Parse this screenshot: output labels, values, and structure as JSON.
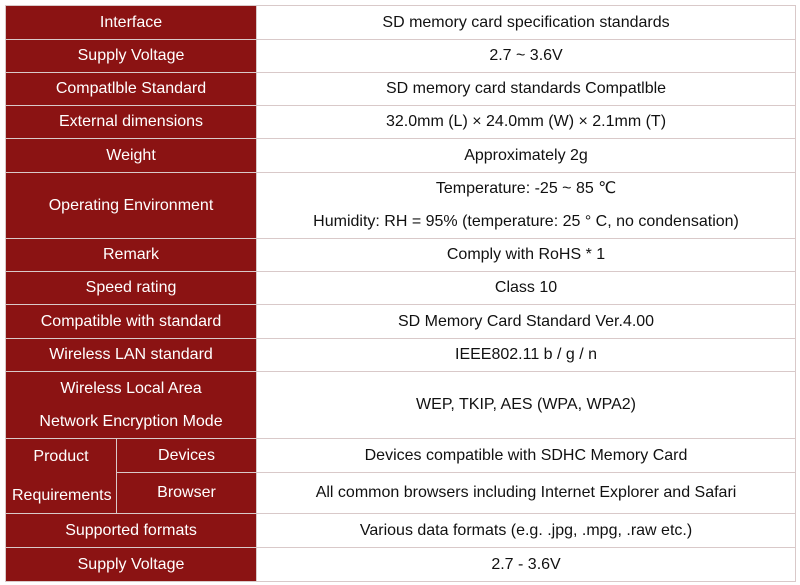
{
  "rows": {
    "interface": {
      "label": "Interface",
      "value": "SD memory card specification standards"
    },
    "supply_voltage_1": {
      "label": "Supply Voltage",
      "value": "2.7 ~ 3.6V"
    },
    "compatible_standard": {
      "label": "Compatlble Standard",
      "value": "SD memory card standards Compatlble"
    },
    "external_dimensions": {
      "label": "External dimensions",
      "value": "32.0mm (L) × 24.0mm (W) × 2.1mm (T)"
    },
    "weight": {
      "label": "Weight",
      "value": "Approximately 2g"
    },
    "operating_environment": {
      "label": "Operating Environment",
      "value_line1": "Temperature: -25 ~ 85 ℃",
      "value_line2": "Humidity: RH = 95% (temperature: 25 ° C, no condensation)"
    },
    "remark": {
      "label": "Remark",
      "value": "Comply with RoHS * 1"
    },
    "speed_rating": {
      "label": "Speed rating",
      "value": "Class 10"
    },
    "compatible_with_standard": {
      "label": "Compatible with standard",
      "value": "SD Memory Card Standard Ver.4.00"
    },
    "wireless_lan_standard": {
      "label": "Wireless LAN standard",
      "value": "IEEE802.11 b / g / n"
    },
    "encryption_mode": {
      "label_line1": "Wireless Local Area",
      "label_line2": "Network Encryption Mode",
      "value": "WEP, TKIP, AES (WPA, WPA2)"
    },
    "product_requirements": {
      "label_line1": "Product",
      "label_line2": "Requirements",
      "devices_label": "Devices",
      "devices_value": "Devices compatible with SDHC Memory Card",
      "browser_label": "Browser",
      "browser_value": "All common browsers including Internet Explorer and Safari"
    },
    "supported_formats": {
      "label": "Supported formats",
      "value": "Various data formats (e.g. .jpg, .mpg, .raw etc.)"
    },
    "supply_voltage_2": {
      "label": "Supply Voltage",
      "value": "2.7 - 3.6V"
    }
  },
  "colors": {
    "label_background": "#8b1313",
    "label_text": "#ffffff",
    "value_background": "#ffffff",
    "value_text": "#111111"
  }
}
